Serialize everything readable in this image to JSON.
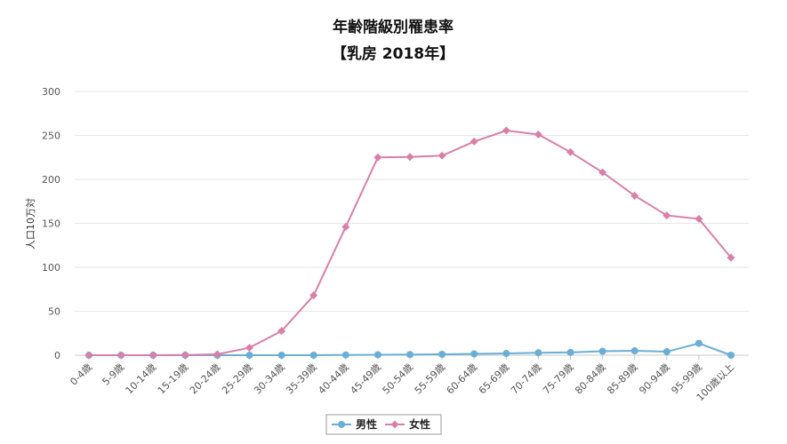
{
  "chart_data": {
    "type": "line",
    "title": "年齢階級別罹患率",
    "subtitle": "【乳房 2018年】",
    "ylabel": "人口10万対",
    "xlabel": "",
    "ylim": [
      0,
      300
    ],
    "yticks": [
      0,
      50,
      100,
      150,
      200,
      250,
      300
    ],
    "grid": true,
    "legend_position": "bottom",
    "categories": [
      "0-4歳",
      "5-9歳",
      "10-14歳",
      "15-19歳",
      "20-24歳",
      "25-29歳",
      "30-34歳",
      "35-39歳",
      "40-44歳",
      "45-49歳",
      "50-54歳",
      "55-59歳",
      "60-64歳",
      "65-69歳",
      "70-74歳",
      "75-79歳",
      "80-84歳",
      "85-89歳",
      "90-94歳",
      "95-99歳",
      "100歳以上"
    ],
    "series": [
      {
        "name": "男性",
        "color": "#6aaed6",
        "marker": "circle",
        "values": [
          0,
          0,
          0,
          0,
          0,
          0,
          0,
          0,
          0.3,
          0.5,
          0.7,
          1.0,
          1.5,
          2.0,
          2.8,
          3.2,
          4.5,
          5.0,
          4.0,
          13.5,
          0
        ]
      },
      {
        "name": "女性",
        "color": "#d97fa8",
        "marker": "diamond",
        "values": [
          0,
          0,
          0,
          0.2,
          1.0,
          8.5,
          27.5,
          68.0,
          146.0,
          225.0,
          225.5,
          227.0,
          243.0,
          255.5,
          251.0,
          231.0,
          208.0,
          181.5,
          159.0,
          155.0,
          111.0
        ]
      }
    ]
  }
}
